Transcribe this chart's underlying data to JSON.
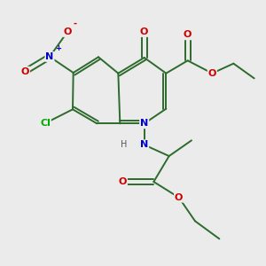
{
  "bg_color": "#ebebeb",
  "bond_color": "#2d6b2d",
  "atom_colors": {
    "N": "#0000cc",
    "O": "#cc0000",
    "Cl": "#00aa00",
    "H": "#555555",
    "C": "#2d6b2d"
  },
  "figsize": [
    3.0,
    3.0
  ],
  "dpi": 100
}
